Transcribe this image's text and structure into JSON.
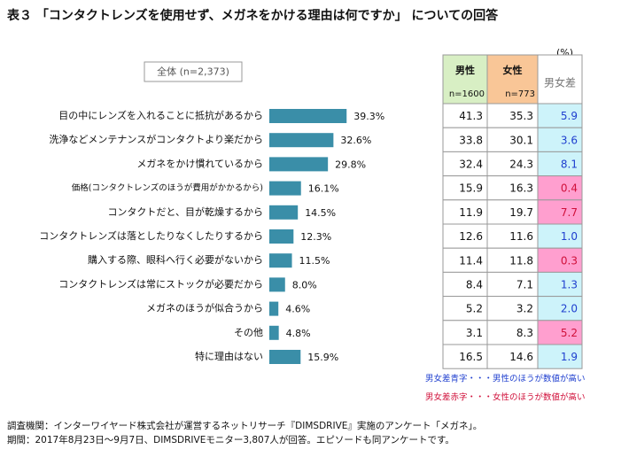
{
  "chart_data": {
    "type": "bar",
    "orientation": "horizontal",
    "title": "表３ 「コンタクトレンズを使用せず、メガネをかける理由は何ですか」 についての回答",
    "subtitle": "全体 (n=2,373)",
    "unit_label": "(%)",
    "color": "#3a8ea8",
    "categories": [
      "目の中にレンズを入れることに抵抗があるから",
      "洗浄などメンテナンスがコンタクトより楽だから",
      "メガネをかけ慣れているから",
      "価格(コンタクトレンズのほうが費用がかかるから)",
      "コンタクトだと、目が乾燥するから",
      "コンタクトレンズは落としたりなくしたりするから",
      "購入する際、眼科へ行く必要がないから",
      "コンタクトレンズは常にストックが必要だから",
      "メガネのほうが似合うから",
      "その他",
      "特に理由はない"
    ],
    "values": [
      39.3,
      32.6,
      29.8,
      16.1,
      14.5,
      12.3,
      11.5,
      8.0,
      4.6,
      4.8,
      15.9
    ],
    "value_labels": [
      "39.3%",
      "32.6%",
      "29.8%",
      "16.1%",
      "14.5%",
      "12.3%",
      "11.5%",
      "8.0%",
      "4.6%",
      "4.8%",
      "15.9%"
    ]
  },
  "table": {
    "header": [
      {
        "label": "男性",
        "n": "n=1600",
        "fill": "#d8efc4"
      },
      {
        "label": "女性",
        "n": "n=773",
        "fill": "#f9c697"
      },
      {
        "label": "男女差",
        "fill": "#ffffff"
      }
    ],
    "rows": [
      [
        "41.3",
        "35.3",
        "5.9"
      ],
      [
        "33.8",
        "30.1",
        "3.6"
      ],
      [
        "32.4",
        "24.3",
        "8.1"
      ],
      [
        "15.9",
        "16.3",
        "0.4"
      ],
      [
        "11.9",
        "19.7",
        "7.7"
      ],
      [
        "12.6",
        "11.6",
        "1.0"
      ],
      [
        "11.4",
        "11.8",
        "0.3"
      ],
      [
        "8.4",
        "7.1",
        "1.3"
      ],
      [
        "5.2",
        "3.2",
        "2.0"
      ],
      [
        "3.1",
        "8.3",
        "5.2"
      ],
      [
        "16.5",
        "14.6",
        "1.9"
      ]
    ],
    "diff_styles": [
      "blue",
      "blue",
      "blue",
      "red",
      "red",
      "blue",
      "red",
      "blue",
      "blue",
      "red",
      "blue"
    ],
    "styles": {
      "blue": {
        "fill": "#cdf3fa",
        "text": "#1f3fcf"
      },
      "red": {
        "fill": "#ff9fcf",
        "text": "#d0103a"
      }
    },
    "notes": [
      {
        "text": "男女差青字・・・男性のほうが数値が高い",
        "style": "blue"
      },
      {
        "text": "男女差赤字・・・女性のほうが数値が高い",
        "style": "red"
      }
    ]
  },
  "footer": [
    "調査機関：インターワイヤード株式会社が運営するネットリサーチ『DIMSDRIVE』実施のアンケート「メガネ」。",
    "期間：2017年8月23日～9月7日、DIMSDRIVEモニター3,807人が回答。エピソードも同アンケートです。"
  ]
}
